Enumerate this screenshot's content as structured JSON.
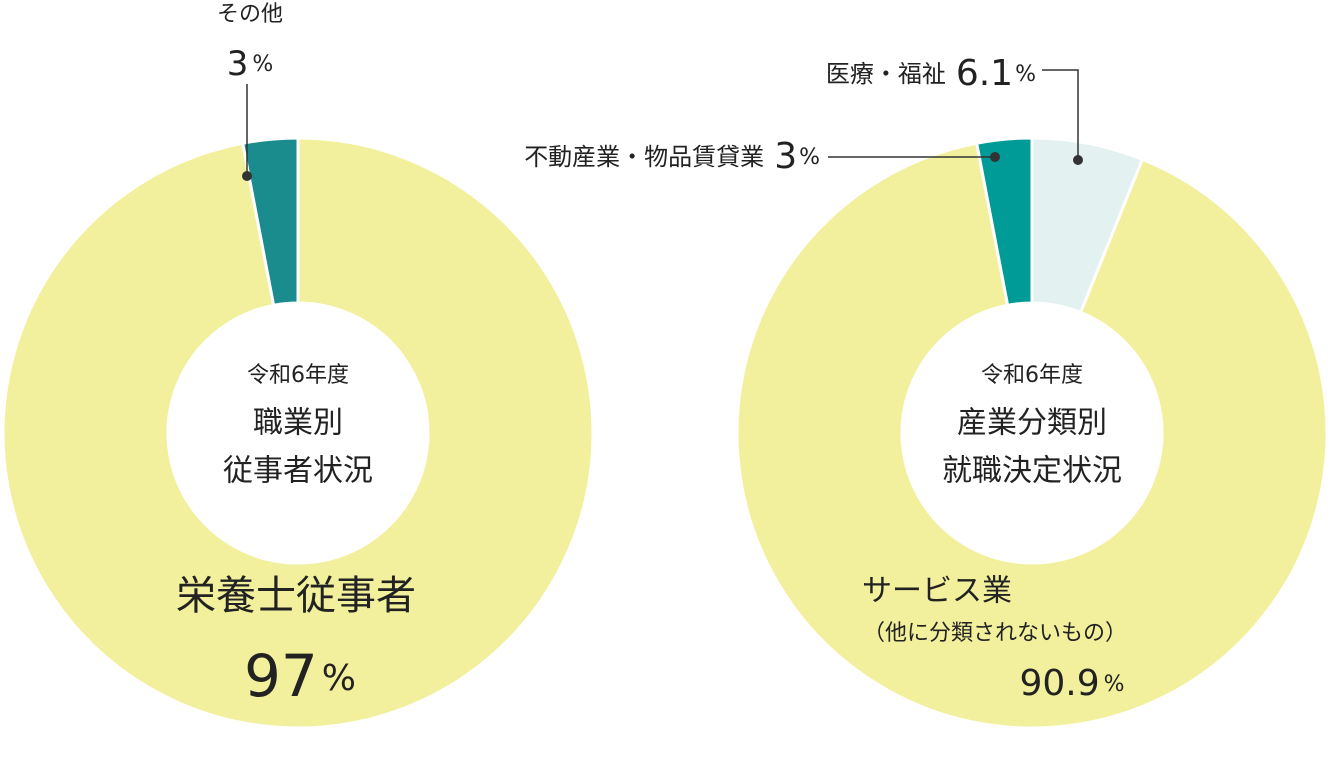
{
  "chart_data": [
    {
      "type": "pie",
      "center_text": [
        "令和6年度",
        "職業別",
        "従事者状況"
      ],
      "categories": [
        "栄養士従事者",
        "その他"
      ],
      "values": [
        97,
        3
      ],
      "colors": [
        "#f2f09c",
        "#1a8c8e"
      ],
      "unit": "%"
    },
    {
      "type": "pie",
      "center_text": [
        "令和6年度",
        "産業分類別",
        "就職決定状況"
      ],
      "categories": [
        "医療・福祉",
        "サービス業",
        "不動産業・物品賃貸業"
      ],
      "category_notes": [
        null,
        "（他に分類されないもの）",
        null
      ],
      "values": [
        6.1,
        90.9,
        3
      ],
      "colors": [
        "#e3f1f0",
        "#f2f09c",
        "#009b96"
      ],
      "unit": "%"
    }
  ]
}
